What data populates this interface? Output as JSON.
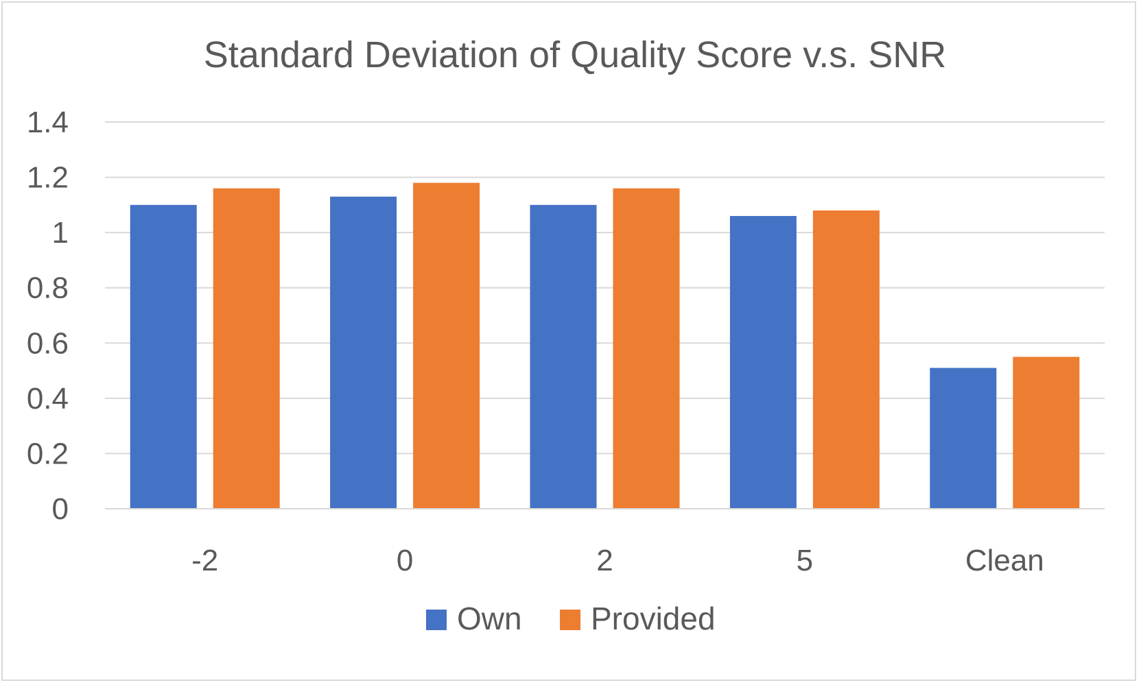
{
  "chart_data": {
    "type": "bar",
    "title": "Standard Deviation of Quality Score v.s. SNR",
    "xlabel": "",
    "ylabel": "",
    "categories": [
      "-2",
      "0",
      "2",
      "5",
      "Clean"
    ],
    "series": [
      {
        "name": "Own",
        "color": "#4472C4",
        "values": [
          1.1,
          1.13,
          1.1,
          1.06,
          0.51
        ]
      },
      {
        "name": "Provided",
        "color": "#ED7D31",
        "values": [
          1.16,
          1.18,
          1.16,
          1.08,
          0.55
        ]
      }
    ],
    "ylim": [
      0,
      1.4
    ],
    "yticks": [
      "0",
      "0.2",
      "0.4",
      "0.6",
      "0.8",
      "1",
      "1.2",
      "1.4"
    ],
    "grid": true,
    "legend_position": "bottom"
  }
}
